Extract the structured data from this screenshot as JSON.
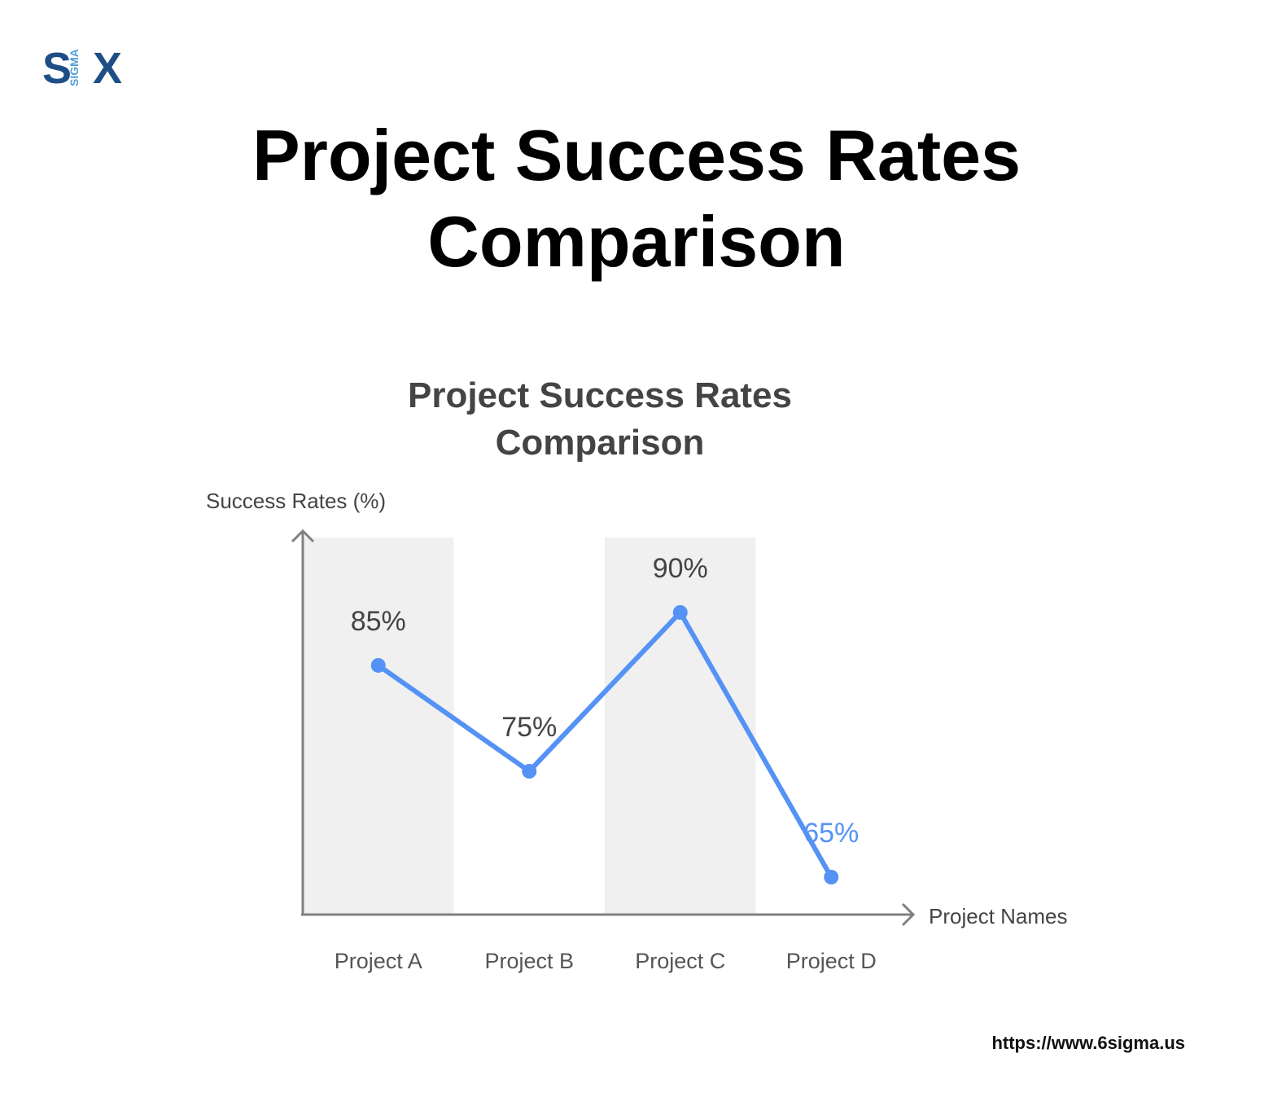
{
  "brand": {
    "logo_letters_left": "S",
    "logo_letters_small": "SIGMA",
    "logo_letters_right": "X",
    "logo_color_dark": "#1d4f86",
    "logo_color_light": "#4f9ed9"
  },
  "header": {
    "title_line1": "Project Success Rates",
    "title_line2": "Comparison"
  },
  "footer": {
    "url": "https://www.6sigma.us"
  },
  "chart_data": {
    "type": "line",
    "title_line1": "Project Success Rates",
    "title_line2": "Comparison",
    "ylabel": "Success Rates (%)",
    "xlabel": "Project Names",
    "categories": [
      "Project A",
      "Project B",
      "Project C",
      "Project D"
    ],
    "series": [
      {
        "values": [
          85,
          75,
          90,
          65
        ],
        "color": "#5592f5"
      }
    ],
    "data_labels": [
      "85%",
      "75%",
      "90%",
      "65%"
    ],
    "ylim": [
      0,
      100
    ],
    "grid": false,
    "band_color": "#f0f0f0",
    "axis_color": "#808080"
  }
}
